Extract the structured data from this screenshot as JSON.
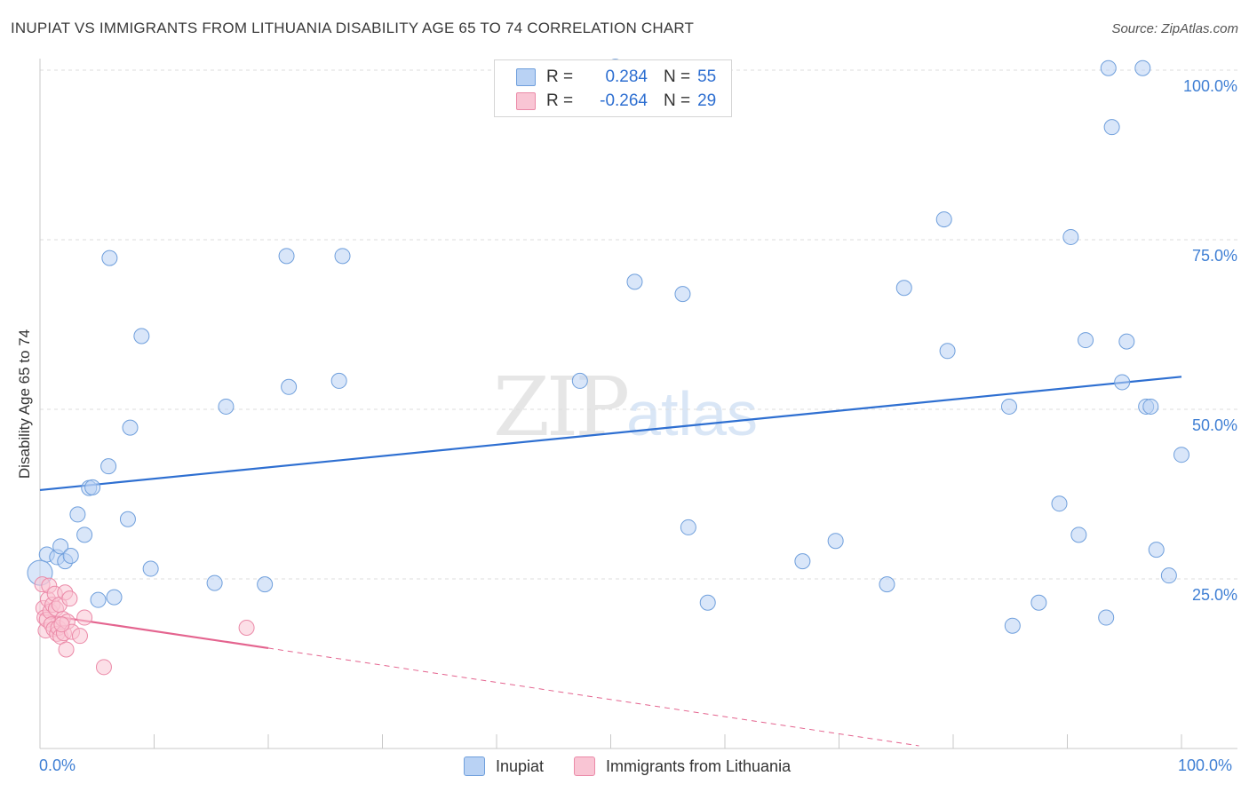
{
  "title": "INUPIAT VS IMMIGRANTS FROM LITHUANIA DISABILITY AGE 65 TO 74 CORRELATION CHART",
  "source": "Source: ZipAtlas.com",
  "watermark": {
    "zip": "ZIP",
    "atlas": "atlas"
  },
  "stats": {
    "inupiat": {
      "r_label": "R =",
      "r_value": "0.284",
      "n_label": "N =",
      "n_value": "55"
    },
    "lithuania": {
      "r_label": "R =",
      "r_value": "-0.264",
      "n_label": "N =",
      "n_value": "29"
    }
  },
  "legend": {
    "inupiat": "Inupiat",
    "lithuania": "Immigrants from Lithuania"
  },
  "colors": {
    "inupiat_fill": "#b9d2f4",
    "inupiat_stroke": "#6f9fdc",
    "inupiat_line": "#2e6fd1",
    "lithuania_fill": "#f9c5d4",
    "lithuania_stroke": "#eb8aa8",
    "lithuania_line": "#e4648f",
    "axis_label": "#3f7fd4",
    "grid": "#dddddd"
  },
  "chart_data": {
    "type": "scatter",
    "title": "INUPIAT VS IMMIGRANTS FROM LITHUANIA DISABILITY AGE 65 TO 74 CORRELATION CHART",
    "xlabel": "",
    "ylabel": "Disability Age 65 to 74",
    "xlim": [
      0,
      100
    ],
    "ylim": [
      0,
      100
    ],
    "x_tick_labels": [
      "0.0%",
      "100.0%"
    ],
    "y_ticks": [
      25,
      50,
      75,
      100
    ],
    "y_tick_labels": [
      "25.0%",
      "50.0%",
      "75.0%",
      "100.0%"
    ],
    "grid": true,
    "series": [
      {
        "name": "Inupiat",
        "r": 0.284,
        "n": 55,
        "trend": {
          "x": [
            0,
            100
          ],
          "y": [
            38.1,
            54.8
          ]
        },
        "points": [
          [
            0.6,
            28.6
          ],
          [
            1.5,
            28.2
          ],
          [
            1.8,
            29.8
          ],
          [
            2.2,
            27.6
          ],
          [
            2.7,
            28.4
          ],
          [
            3.3,
            34.5
          ],
          [
            3.9,
            31.5
          ],
          [
            4.3,
            38.4
          ],
          [
            4.6,
            38.5
          ],
          [
            5.1,
            21.9
          ],
          [
            6.0,
            41.6
          ],
          [
            6.5,
            22.3
          ],
          [
            6.1,
            72.3
          ],
          [
            7.7,
            33.8
          ],
          [
            7.9,
            47.3
          ],
          [
            8.9,
            60.8
          ],
          [
            9.7,
            26.5
          ],
          [
            15.3,
            24.4
          ],
          [
            16.3,
            50.4
          ],
          [
            19.7,
            24.2
          ],
          [
            21.6,
            72.6
          ],
          [
            21.8,
            53.3
          ],
          [
            26.2,
            54.2
          ],
          [
            26.5,
            72.6
          ],
          [
            47.3,
            54.2
          ],
          [
            50.4,
            100.5
          ],
          [
            52.1,
            68.8
          ],
          [
            56.3,
            67.0
          ],
          [
            56.8,
            32.6
          ],
          [
            58.5,
            21.5
          ],
          [
            66.8,
            27.6
          ],
          [
            69.7,
            30.6
          ],
          [
            74.2,
            24.2
          ],
          [
            75.7,
            67.9
          ],
          [
            79.2,
            78.0
          ],
          [
            79.5,
            58.6
          ],
          [
            84.9,
            50.4
          ],
          [
            85.2,
            18.1
          ],
          [
            87.5,
            21.5
          ],
          [
            89.3,
            36.1
          ],
          [
            90.3,
            75.4
          ],
          [
            91.0,
            31.5
          ],
          [
            91.6,
            60.2
          ],
          [
            93.4,
            19.3
          ],
          [
            93.6,
            100.3
          ],
          [
            93.9,
            91.6
          ],
          [
            94.8,
            54.0
          ],
          [
            95.2,
            60.0
          ],
          [
            96.6,
            100.3
          ],
          [
            96.9,
            50.4
          ],
          [
            97.3,
            50.4
          ],
          [
            97.8,
            29.3
          ],
          [
            98.9,
            25.5
          ],
          [
            100.0,
            43.3
          ],
          [
            0.0,
            25.9
          ]
        ]
      },
      {
        "name": "Immigrants from Lithuania",
        "r": -0.264,
        "n": 29,
        "trend": {
          "x": [
            0,
            20
          ],
          "y": [
            19.8,
            14.8
          ]
        },
        "trend_dashed": {
          "x": [
            20,
            77
          ],
          "y": [
            14.8,
            0.4
          ]
        },
        "points": [
          [
            0.2,
            24.2
          ],
          [
            0.3,
            20.7
          ],
          [
            0.4,
            19.3
          ],
          [
            0.5,
            17.4
          ],
          [
            0.6,
            19.0
          ],
          [
            0.7,
            22.0
          ],
          [
            0.8,
            24.0
          ],
          [
            0.9,
            20.2
          ],
          [
            1.0,
            18.3
          ],
          [
            1.1,
            21.2
          ],
          [
            1.2,
            17.6
          ],
          [
            1.3,
            22.8
          ],
          [
            1.4,
            20.6
          ],
          [
            1.5,
            16.9
          ],
          [
            1.6,
            17.8
          ],
          [
            1.7,
            21.2
          ],
          [
            1.8,
            16.5
          ],
          [
            2.0,
            19.1
          ],
          [
            2.1,
            17.0
          ],
          [
            2.2,
            23.0
          ],
          [
            2.3,
            14.6
          ],
          [
            2.4,
            18.7
          ],
          [
            2.6,
            22.1
          ],
          [
            2.8,
            17.2
          ],
          [
            3.5,
            16.6
          ],
          [
            3.9,
            19.3
          ],
          [
            5.6,
            12.0
          ],
          [
            18.1,
            17.8
          ],
          [
            1.9,
            18.3
          ]
        ]
      }
    ]
  }
}
